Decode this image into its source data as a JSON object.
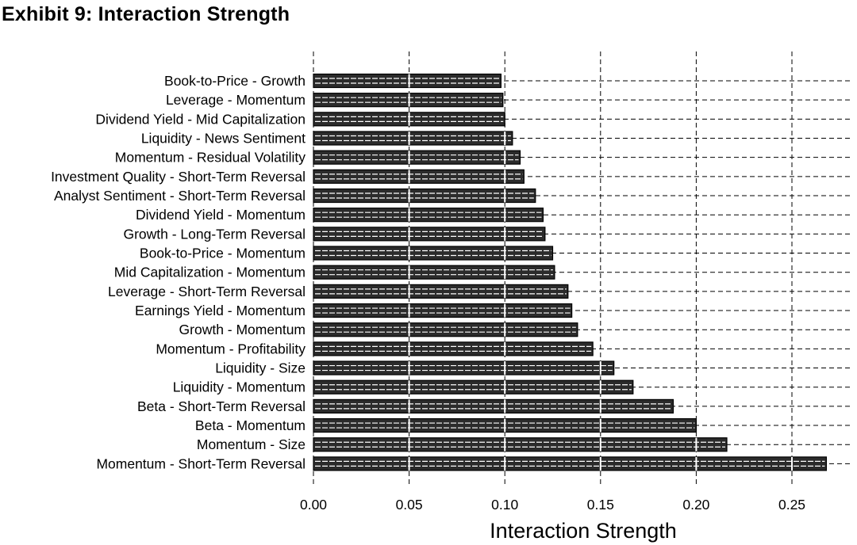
{
  "page": {
    "title": "Exhibit 9: Interaction Strength"
  },
  "chart_data": {
    "type": "bar",
    "orientation": "horizontal",
    "title": "Exhibit 9: Interaction Strength",
    "xlabel": "Interaction Strength",
    "ylabel": "",
    "xlim": [
      0,
      0.27
    ],
    "xticks": [
      "0.00",
      "0.05",
      "0.10",
      "0.15",
      "0.20",
      "0.25"
    ],
    "grid": "dashed vertical and horizontal",
    "categories": [
      "Book-to-Price - Growth",
      "Leverage - Momentum",
      "Dividend Yield - Mid Capitalization",
      "Liquidity - News Sentiment",
      "Momentum - Residual Volatility",
      "Investment Quality - Short-Term Reversal",
      "Analyst Sentiment - Short-Term Reversal",
      "Dividend Yield - Momentum",
      "Growth - Long-Term Reversal",
      "Book-to-Price - Momentum",
      "Mid Capitalization - Momentum",
      "Leverage - Short-Term Reversal",
      "Earnings Yield - Momentum",
      "Growth - Momentum",
      "Momentum - Profitability",
      "Liquidity - Size",
      "Liquidity - Momentum",
      "Beta - Short-Term Reversal",
      "Beta - Momentum",
      "Momentum - Size",
      "Momentum - Short-Term Reversal"
    ],
    "values": [
      0.098,
      0.099,
      0.1,
      0.104,
      0.108,
      0.11,
      0.116,
      0.12,
      0.121,
      0.125,
      0.126,
      0.133,
      0.135,
      0.138,
      0.146,
      0.157,
      0.167,
      0.188,
      0.2,
      0.216,
      0.268
    ],
    "bar_color": "#2b2b2b"
  }
}
